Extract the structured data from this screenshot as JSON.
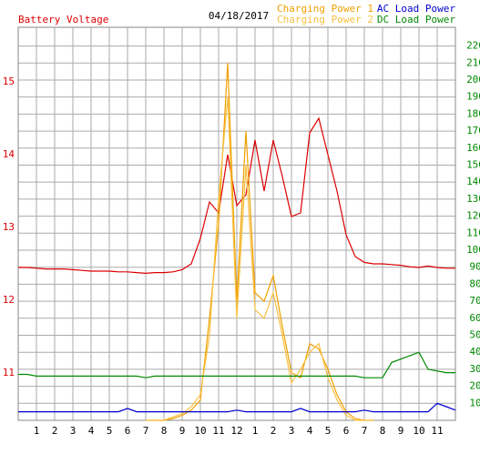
{
  "chart_data": {
    "type": "line",
    "title": "04/18/2017",
    "xlim": [
      0,
      24
    ],
    "xticks": [
      1,
      2,
      3,
      4,
      5,
      6,
      7,
      8,
      9,
      10,
      11,
      12,
      {
        "value": 13,
        "label": "1"
      },
      {
        "value": 14,
        "label": "2"
      },
      {
        "value": 15,
        "label": "3"
      },
      {
        "value": 16,
        "label": "4"
      },
      {
        "value": 17,
        "label": "5"
      },
      {
        "value": 18,
        "label": "6"
      },
      {
        "value": 19,
        "label": "7"
      },
      {
        "value": 20,
        "label": "8"
      },
      {
        "value": 21,
        "label": "9"
      },
      {
        "value": 22,
        "label": "10"
      },
      {
        "value": 23,
        "label": "11"
      }
    ],
    "ylim": [
      10.35,
      15.75
    ],
    "yticks": [
      11,
      12,
      13,
      14,
      15
    ],
    "y2lim": [
      0,
      231
    ],
    "y2ticks": [
      10,
      20,
      30,
      40,
      50,
      60,
      70,
      80,
      90,
      100,
      110,
      120,
      130,
      140,
      150,
      160,
      170,
      180,
      190,
      200,
      210,
      220
    ],
    "grid": true,
    "x": [
      0,
      0.5,
      1,
      1.5,
      2,
      2.5,
      3,
      3.5,
      4,
      4.5,
      5,
      5.5,
      6,
      6.5,
      7,
      7.5,
      8,
      8.5,
      9,
      9.5,
      10,
      10.5,
      11,
      11.5,
      12,
      12.5,
      13,
      13.5,
      14,
      14.5,
      15,
      15.5,
      16,
      16.5,
      17,
      17.5,
      18,
      18.5,
      19,
      19.5,
      20,
      20.5,
      21,
      21.5,
      22,
      22.5,
      23,
      23.5,
      24
    ],
    "series": [
      {
        "name": "Battery Voltage",
        "color": "#dd0000",
        "axis": "y",
        "values": [
          12.45,
          12.45,
          12.44,
          12.43,
          12.43,
          12.43,
          12.42,
          12.41,
          12.4,
          12.4,
          12.4,
          12.39,
          12.39,
          12.38,
          12.37,
          12.38,
          12.38,
          12.39,
          12.42,
          12.5,
          12.85,
          13.35,
          13.2,
          14.0,
          13.3,
          13.45,
          14.2,
          13.5,
          14.2,
          13.7,
          13.15,
          13.2,
          14.3,
          14.5,
          14.0,
          13.5,
          12.9,
          12.6,
          12.52,
          12.5,
          12.5,
          12.49,
          12.48,
          12.46,
          12.45,
          12.47,
          12.45,
          12.44,
          12.44
        ]
      },
      {
        "name": "Charging Power 1",
        "color": "#f0a000",
        "axis": "y2",
        "values": [
          null,
          null,
          null,
          null,
          null,
          null,
          null,
          null,
          null,
          null,
          null,
          null,
          null,
          null,
          0,
          0,
          0,
          1,
          3,
          6,
          12,
          60,
          115,
          210,
          70,
          170,
          75,
          70,
          85,
          55,
          28,
          25,
          45,
          42,
          30,
          15,
          5,
          1,
          0,
          0,
          null,
          null,
          null,
          null,
          null,
          null,
          null,
          null,
          null
        ]
      },
      {
        "name": "Charging Power 2",
        "color": "#f8c040",
        "axis": "y2",
        "values": [
          null,
          null,
          null,
          null,
          null,
          null,
          null,
          null,
          null,
          null,
          null,
          null,
          null,
          null,
          0,
          0,
          0,
          2,
          4,
          8,
          15,
          50,
          130,
          190,
          60,
          150,
          65,
          60,
          75,
          50,
          22,
          30,
          40,
          45,
          25,
          12,
          3,
          0,
          0,
          0,
          null,
          null,
          null,
          null,
          null,
          null,
          null,
          null,
          null
        ]
      },
      {
        "name": "AC Load Power",
        "color": "#0000cc",
        "axis": "y2",
        "values": [
          5,
          5,
          5,
          5,
          5,
          5,
          5,
          5,
          5,
          5,
          5,
          5,
          7,
          5,
          5,
          5,
          5,
          5,
          5,
          5,
          5,
          5,
          5,
          5,
          6,
          5,
          5,
          5,
          5,
          5,
          5,
          7,
          5,
          5,
          5,
          5,
          5,
          5,
          6,
          5,
          5,
          5,
          5,
          5,
          5,
          5,
          10,
          8,
          6
        ]
      },
      {
        "name": "DC Load Power",
        "color": "#008800",
        "axis": "y2",
        "values": [
          27,
          27,
          26,
          26,
          26,
          26,
          26,
          26,
          26,
          26,
          26,
          26,
          26,
          26,
          25,
          26,
          26,
          26,
          26,
          26,
          26,
          26,
          26,
          26,
          26,
          26,
          26,
          26,
          26,
          26,
          26,
          26,
          26,
          26,
          26,
          26,
          26,
          26,
          25,
          25,
          25,
          34,
          36,
          38,
          40,
          30,
          29,
          28,
          28
        ]
      }
    ]
  }
}
